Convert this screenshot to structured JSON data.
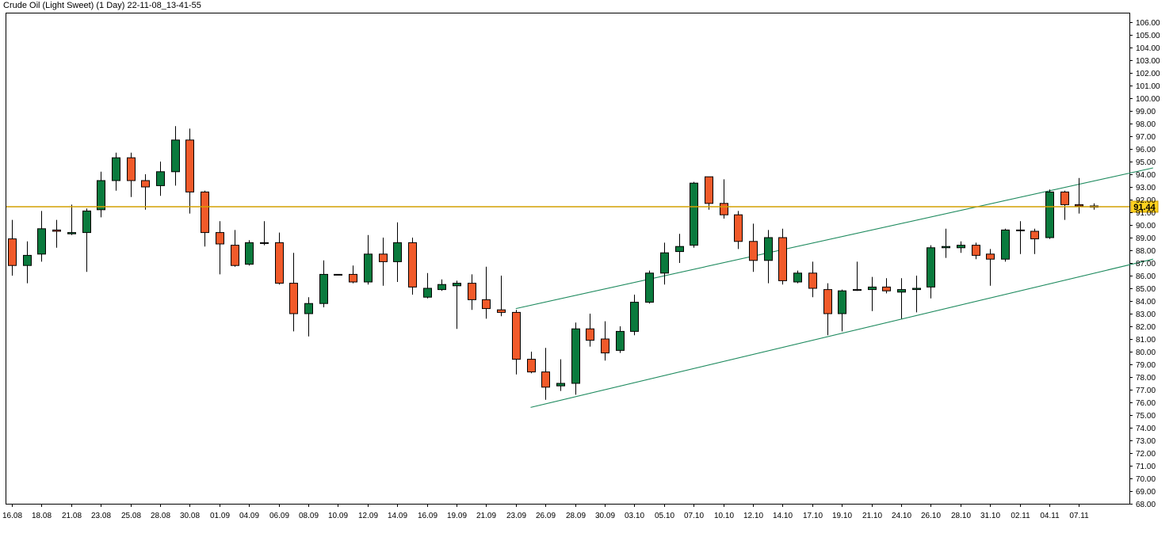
{
  "chart_data": {
    "type": "candlestick",
    "title": "Crude Oil (Light Sweet) (1 Day) 22-11-08_13-41-55",
    "ylim": [
      68,
      107
    ],
    "y_ticks": [
      "106.00",
      "105.00",
      "104.00",
      "103.00",
      "102.00",
      "101.00",
      "100.00",
      "99.00",
      "98.00",
      "97.00",
      "96.00",
      "95.00",
      "94.00",
      "93.00",
      "92.00",
      "91.00",
      "90.00",
      "89.00",
      "88.00",
      "87.00",
      "86.00",
      "85.00",
      "84.00",
      "83.00",
      "82.00",
      "81.00",
      "80.00",
      "79.00",
      "78.00",
      "77.00",
      "76.00",
      "75.00",
      "74.00",
      "73.00",
      "72.00",
      "71.00",
      "70.00",
      "69.00",
      "68.00"
    ],
    "x_tick_labels": [
      {
        "i": 0,
        "label": "16.08"
      },
      {
        "i": 2,
        "label": "18.08"
      },
      {
        "i": 4,
        "label": "21.08"
      },
      {
        "i": 6,
        "label": "23.08"
      },
      {
        "i": 8,
        "label": "25.08"
      },
      {
        "i": 10,
        "label": "28.08"
      },
      {
        "i": 12,
        "label": "30.08"
      },
      {
        "i": 14,
        "label": "01.09"
      },
      {
        "i": 16,
        "label": "04.09"
      },
      {
        "i": 18,
        "label": "06.09"
      },
      {
        "i": 20,
        "label": "08.09"
      },
      {
        "i": 22,
        "label": "10.09"
      },
      {
        "i": 24,
        "label": "12.09"
      },
      {
        "i": 26,
        "label": "14.09"
      },
      {
        "i": 28,
        "label": "16.09"
      },
      {
        "i": 30,
        "label": "19.09"
      },
      {
        "i": 32,
        "label": "21.09"
      },
      {
        "i": 34,
        "label": "23.09"
      },
      {
        "i": 36,
        "label": "26.09"
      },
      {
        "i": 38,
        "label": "28.09"
      },
      {
        "i": 40,
        "label": "30.09"
      },
      {
        "i": 42,
        "label": "03.10"
      },
      {
        "i": 44,
        "label": "05.10"
      },
      {
        "i": 46,
        "label": "07.10"
      },
      {
        "i": 48,
        "label": "10.10"
      },
      {
        "i": 50,
        "label": "12.10"
      },
      {
        "i": 52,
        "label": "14.10"
      },
      {
        "i": 54,
        "label": "17.10"
      },
      {
        "i": 56,
        "label": "19.10"
      },
      {
        "i": 58,
        "label": "21.10"
      },
      {
        "i": 60,
        "label": "24.10"
      },
      {
        "i": 62,
        "label": "26.10"
      },
      {
        "i": 64,
        "label": "28.10"
      },
      {
        "i": 66,
        "label": "31.10"
      },
      {
        "i": 68,
        "label": "02.11"
      },
      {
        "i": 70,
        "label": "04.11"
      },
      {
        "i": 72,
        "label": "07.11"
      }
    ],
    "candles": [
      {
        "o": 88.9,
        "h": 90.4,
        "l": 86.0,
        "c": 86.8
      },
      {
        "o": 86.8,
        "h": 88.7,
        "l": 85.4,
        "c": 87.6
      },
      {
        "o": 87.7,
        "h": 91.1,
        "l": 87.1,
        "c": 89.7
      },
      {
        "o": 89.6,
        "h": 90.4,
        "l": 88.2,
        "c": 89.5
      },
      {
        "o": 89.3,
        "h": 91.6,
        "l": 89.2,
        "c": 89.4
      },
      {
        "o": 89.4,
        "h": 91.3,
        "l": 86.3,
        "c": 91.1
      },
      {
        "o": 91.2,
        "h": 94.2,
        "l": 90.6,
        "c": 93.5
      },
      {
        "o": 93.5,
        "h": 95.7,
        "l": 92.7,
        "c": 95.3
      },
      {
        "o": 95.3,
        "h": 95.7,
        "l": 92.2,
        "c": 93.5
      },
      {
        "o": 93.5,
        "h": 94.0,
        "l": 91.2,
        "c": 93.0
      },
      {
        "o": 93.1,
        "h": 95.0,
        "l": 92.3,
        "c": 94.2
      },
      {
        "o": 94.2,
        "h": 97.8,
        "l": 93.1,
        "c": 96.7
      },
      {
        "o": 96.7,
        "h": 97.6,
        "l": 90.9,
        "c": 92.6
      },
      {
        "o": 92.6,
        "h": 92.7,
        "l": 88.3,
        "c": 89.4
      },
      {
        "o": 89.4,
        "h": 90.3,
        "l": 86.1,
        "c": 88.5
      },
      {
        "o": 88.4,
        "h": 89.6,
        "l": 86.7,
        "c": 86.8
      },
      {
        "o": 86.9,
        "h": 88.8,
        "l": 86.8,
        "c": 88.6
      },
      {
        "o": 88.6,
        "h": 90.3,
        "l": 88.4,
        "c": 88.6
      },
      {
        "o": 88.6,
        "h": 89.4,
        "l": 85.3,
        "c": 85.4
      },
      {
        "o": 85.4,
        "h": 87.8,
        "l": 81.6,
        "c": 83.0
      },
      {
        "o": 83.0,
        "h": 84.3,
        "l": 81.2,
        "c": 83.8
      },
      {
        "o": 83.8,
        "h": 87.2,
        "l": 83.5,
        "c": 86.1
      },
      {
        "o": 86.1,
        "h": 86.1,
        "l": 86.1,
        "c": 86.1
      },
      {
        "o": 86.1,
        "h": 86.8,
        "l": 85.4,
        "c": 85.5
      },
      {
        "o": 85.5,
        "h": 89.2,
        "l": 85.3,
        "c": 87.7
      },
      {
        "o": 87.7,
        "h": 89.0,
        "l": 85.2,
        "c": 87.1
      },
      {
        "o": 87.1,
        "h": 90.2,
        "l": 85.5,
        "c": 88.6
      },
      {
        "o": 88.6,
        "h": 89.0,
        "l": 84.5,
        "c": 85.1
      },
      {
        "o": 84.3,
        "h": 86.2,
        "l": 84.2,
        "c": 85.0
      },
      {
        "o": 84.9,
        "h": 85.7,
        "l": 84.8,
        "c": 85.3
      },
      {
        "o": 85.2,
        "h": 85.6,
        "l": 81.8,
        "c": 85.4
      },
      {
        "o": 85.4,
        "h": 86.1,
        "l": 83.3,
        "c": 84.1
      },
      {
        "o": 84.1,
        "h": 86.7,
        "l": 82.6,
        "c": 83.4
      },
      {
        "o": 83.3,
        "h": 86.0,
        "l": 82.8,
        "c": 83.1
      },
      {
        "o": 83.1,
        "h": 83.3,
        "l": 78.2,
        "c": 79.4
      },
      {
        "o": 79.4,
        "h": 80.0,
        "l": 78.3,
        "c": 78.4
      },
      {
        "o": 78.4,
        "h": 80.3,
        "l": 76.2,
        "c": 77.2
      },
      {
        "o": 77.3,
        "h": 79.4,
        "l": 76.9,
        "c": 77.5
      },
      {
        "o": 77.5,
        "h": 82.3,
        "l": 76.6,
        "c": 81.8
      },
      {
        "o": 81.8,
        "h": 83.0,
        "l": 80.4,
        "c": 80.9
      },
      {
        "o": 81.0,
        "h": 82.4,
        "l": 79.3,
        "c": 79.9
      },
      {
        "o": 80.1,
        "h": 82.0,
        "l": 79.9,
        "c": 81.6
      },
      {
        "o": 81.6,
        "h": 84.5,
        "l": 81.3,
        "c": 83.9
      },
      {
        "o": 83.9,
        "h": 86.4,
        "l": 83.8,
        "c": 86.2
      },
      {
        "o": 86.2,
        "h": 88.6,
        "l": 85.3,
        "c": 87.8
      },
      {
        "o": 87.9,
        "h": 89.3,
        "l": 87.0,
        "c": 88.3
      },
      {
        "o": 88.4,
        "h": 93.4,
        "l": 88.2,
        "c": 93.3
      },
      {
        "o": 93.8,
        "h": 93.8,
        "l": 91.2,
        "c": 91.7
      },
      {
        "o": 91.7,
        "h": 93.6,
        "l": 90.5,
        "c": 90.8
      },
      {
        "o": 90.8,
        "h": 91.1,
        "l": 88.1,
        "c": 88.7
      },
      {
        "o": 88.7,
        "h": 90.1,
        "l": 86.3,
        "c": 87.2
      },
      {
        "o": 87.2,
        "h": 89.6,
        "l": 85.4,
        "c": 89.0
      },
      {
        "o": 89.0,
        "h": 89.7,
        "l": 85.3,
        "c": 85.6
      },
      {
        "o": 85.5,
        "h": 86.4,
        "l": 85.4,
        "c": 86.2
      },
      {
        "o": 86.2,
        "h": 87.1,
        "l": 84.3,
        "c": 85.0
      },
      {
        "o": 84.9,
        "h": 85.4,
        "l": 81.3,
        "c": 83.0
      },
      {
        "o": 83.0,
        "h": 84.9,
        "l": 81.6,
        "c": 84.8
      },
      {
        "o": 84.9,
        "h": 87.1,
        "l": 84.8,
        "c": 84.9
      },
      {
        "o": 84.9,
        "h": 85.9,
        "l": 83.2,
        "c": 85.1
      },
      {
        "o": 85.1,
        "h": 85.8,
        "l": 84.6,
        "c": 84.8
      },
      {
        "o": 84.7,
        "h": 85.8,
        "l": 82.6,
        "c": 84.9
      },
      {
        "o": 84.9,
        "h": 86.0,
        "l": 83.1,
        "c": 85.0
      },
      {
        "o": 85.1,
        "h": 88.4,
        "l": 84.2,
        "c": 88.2
      },
      {
        "o": 88.2,
        "h": 89.7,
        "l": 87.4,
        "c": 88.3
      },
      {
        "o": 88.2,
        "h": 88.7,
        "l": 87.8,
        "c": 88.4
      },
      {
        "o": 88.4,
        "h": 88.6,
        "l": 87.3,
        "c": 87.6
      },
      {
        "o": 87.7,
        "h": 88.1,
        "l": 85.2,
        "c": 87.3
      },
      {
        "o": 87.3,
        "h": 89.7,
        "l": 87.1,
        "c": 89.6
      },
      {
        "o": 89.6,
        "h": 90.3,
        "l": 87.7,
        "c": 89.6
      },
      {
        "o": 89.5,
        "h": 89.7,
        "l": 87.7,
        "c": 88.9
      },
      {
        "o": 89.0,
        "h": 92.8,
        "l": 88.9,
        "c": 92.6
      },
      {
        "o": 92.6,
        "h": 92.7,
        "l": 90.4,
        "c": 91.6
      },
      {
        "o": 91.6,
        "h": 93.7,
        "l": 90.9,
        "c": 91.5
      },
      {
        "o": 91.5,
        "h": 91.7,
        "l": 91.2,
        "c": 91.4
      }
    ],
    "last_price": 91.44,
    "last_price_label": "91.44",
    "up_color": "#0a7a3d",
    "down_color": "#f15a2a",
    "price_line_color": "#d4a000",
    "trend_color": "#1e8a5e",
    "trendlines": [
      {
        "i1": 34,
        "p1": 83.4,
        "i2": 77,
        "p2": 94.5
      },
      {
        "i1": 35,
        "p1": 75.6,
        "i2": 77,
        "p2": 87.3
      }
    ]
  }
}
